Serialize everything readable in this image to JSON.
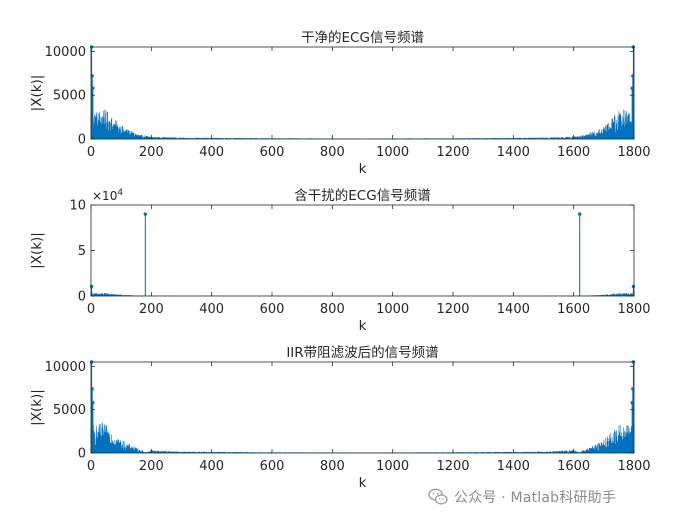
{
  "figure": {
    "background": "#ffffff",
    "axes_color": "#262626",
    "series_color": "#0072bd"
  },
  "chart_data": [
    {
      "type": "stem",
      "title": "干净的ECG信号频谱",
      "xlabel": "k",
      "ylabel": "|X(k)|",
      "xlim": [
        0,
        1800
      ],
      "ylim": [
        0,
        10500
      ],
      "xticks": [
        0,
        200,
        400,
        600,
        800,
        1000,
        1200,
        1400,
        1600,
        1800
      ],
      "yticks": [
        0,
        5000,
        10000
      ],
      "ytick_labels": [
        "0",
        "5000",
        "10000"
      ],
      "exponent_label": "",
      "n_points": 1800,
      "spectrum_shape": "low-pass ECG spectrum, mirrored about k=900",
      "peaks": [
        {
          "k": 2,
          "value": 10500
        },
        {
          "k": 4,
          "value": 7200
        },
        {
          "k": 6,
          "value": 5800
        },
        {
          "k": 1794,
          "value": 5800
        },
        {
          "k": 1796,
          "value": 7200
        },
        {
          "k": 1798,
          "value": 10500
        }
      ],
      "envelope": [
        {
          "k": 0,
          "value": 3000
        },
        {
          "k": 20,
          "value": 2800
        },
        {
          "k": 40,
          "value": 3100
        },
        {
          "k": 60,
          "value": 2600
        },
        {
          "k": 90,
          "value": 1600
        },
        {
          "k": 120,
          "value": 1000
        },
        {
          "k": 160,
          "value": 450
        },
        {
          "k": 200,
          "value": 250
        },
        {
          "k": 300,
          "value": 150
        },
        {
          "k": 600,
          "value": 80
        },
        {
          "k": 900,
          "value": 50
        }
      ]
    },
    {
      "type": "stem",
      "title": "含干扰的ECG信号频谱",
      "xlabel": "k",
      "ylabel": "|X(k)|",
      "xlim": [
        0,
        1800
      ],
      "ylim": [
        0,
        100000
      ],
      "xticks": [
        0,
        200,
        400,
        600,
        800,
        1000,
        1200,
        1400,
        1600,
        1800
      ],
      "yticks": [
        0,
        50000,
        100000
      ],
      "ytick_labels": [
        "0",
        "5",
        "10"
      ],
      "exponent_label": "×10",
      "exponent_power": "4",
      "n_points": 1800,
      "spectrum_shape": "ECG spectrum plus strong interference lines, mirrored about k=900",
      "peaks": [
        {
          "k": 180,
          "value": 90000
        },
        {
          "k": 1620,
          "value": 90000
        },
        {
          "k": 2,
          "value": 10500
        },
        {
          "k": 1798,
          "value": 10500
        }
      ],
      "envelope": [
        {
          "k": 0,
          "value": 3000
        },
        {
          "k": 20,
          "value": 2800
        },
        {
          "k": 40,
          "value": 3100
        },
        {
          "k": 60,
          "value": 2600
        },
        {
          "k": 90,
          "value": 1600
        },
        {
          "k": 120,
          "value": 1000
        },
        {
          "k": 160,
          "value": 450
        },
        {
          "k": 200,
          "value": 250
        },
        {
          "k": 300,
          "value": 150
        },
        {
          "k": 600,
          "value": 80
        },
        {
          "k": 900,
          "value": 50
        }
      ]
    },
    {
      "type": "stem",
      "title": "IIR带阻滤波后的信号频谱",
      "xlabel": "k",
      "ylabel": "|X(k)|",
      "xlim": [
        0,
        1800
      ],
      "ylim": [
        0,
        10500
      ],
      "xticks": [
        0,
        200,
        400,
        600,
        800,
        1000,
        1200,
        1400,
        1600,
        1800
      ],
      "yticks": [
        0,
        5000,
        10000
      ],
      "ytick_labels": [
        "0",
        "5000",
        "10000"
      ],
      "exponent_label": "",
      "n_points": 1800,
      "spectrum_shape": "filtered spectrum with notch near k=180 and k=1620, mirrored about k=900",
      "peaks": [
        {
          "k": 2,
          "value": 10500
        },
        {
          "k": 4,
          "value": 7400
        },
        {
          "k": 6,
          "value": 5800
        },
        {
          "k": 1794,
          "value": 5800
        },
        {
          "k": 1796,
          "value": 7400
        },
        {
          "k": 1798,
          "value": 10500
        }
      ],
      "envelope": [
        {
          "k": 0,
          "value": 3000
        },
        {
          "k": 20,
          "value": 2800
        },
        {
          "k": 40,
          "value": 3100
        },
        {
          "k": 60,
          "value": 2600
        },
        {
          "k": 90,
          "value": 1600
        },
        {
          "k": 120,
          "value": 1000
        },
        {
          "k": 160,
          "value": 450
        },
        {
          "k": 180,
          "value": 80
        },
        {
          "k": 200,
          "value": 300
        },
        {
          "k": 300,
          "value": 150
        },
        {
          "k": 600,
          "value": 80
        },
        {
          "k": 900,
          "value": 50
        }
      ]
    }
  ],
  "watermark": {
    "text": "公众号 · Matlab科研助手",
    "icon": "wechat-icon",
    "color": "#8a8a8a"
  }
}
